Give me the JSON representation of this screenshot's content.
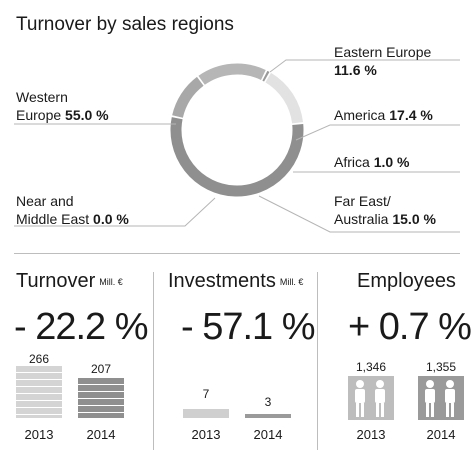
{
  "title": "Turnover by sales regions",
  "chart_data": [
    {
      "type": "pie",
      "title": "Turnover by sales regions",
      "slices": [
        {
          "label": "Eastern Europe",
          "value": 11.6,
          "value_text": "11.6 %"
        },
        {
          "label": "America",
          "value": 17.4,
          "value_text": "17.4 %"
        },
        {
          "label": "Africa",
          "value": 1.0,
          "value_text": "1.0 %"
        },
        {
          "label": "Far East/ Australia",
          "value": 15.0,
          "value_text": "15.0 %"
        },
        {
          "label": "Near and Middle East",
          "value": 0.0,
          "value_text": "0.0 %"
        },
        {
          "label": "Western Europe",
          "value": 55.0,
          "value_text": "55.0 %"
        }
      ],
      "colors": [
        "#a8a8a8",
        "#b6b6b6",
        "#9a9a9a",
        "#e2e2e2",
        "#c8c8c8",
        "#8f8f8f"
      ],
      "style": "donut"
    },
    {
      "type": "bar",
      "title": "Turnover",
      "unit": "Mill. €",
      "change": "- 22.2 %",
      "categories": [
        "2013",
        "2014"
      ],
      "values": [
        266,
        207
      ]
    },
    {
      "type": "bar",
      "title": "Investments",
      "unit": "Mill. €",
      "change": "- 57.1 %",
      "categories": [
        "2013",
        "2014"
      ],
      "values": [
        7,
        3
      ]
    },
    {
      "type": "bar",
      "title": "Employees",
      "unit": "",
      "change": "+ 0.7 %",
      "categories": [
        "2013",
        "2014"
      ],
      "values": [
        1346,
        1355
      ],
      "value_labels": [
        "1,346",
        "1,355"
      ]
    }
  ],
  "labels": {
    "eastern": {
      "name": "Eastern Europe",
      "value": "11.6 %"
    },
    "america": {
      "name": "America",
      "value": "17.4 %"
    },
    "africa": {
      "name": "Africa",
      "value": "1.0 %"
    },
    "fareast": {
      "line1": "Far East/",
      "line2": "Australia",
      "value": "15.0 %"
    },
    "western": {
      "line1": "Western",
      "line2": "Europe",
      "value": "55.0 %"
    },
    "nearmiddle": {
      "line1": "Near and",
      "line2": "Middle East",
      "value": "0.0 %"
    }
  },
  "kpis": {
    "turnover": {
      "title": "Turnover",
      "unit": "Mill. €",
      "change": "- 22.2 %",
      "v2013": "266",
      "v2014": "207",
      "y2013": "2013",
      "y2014": "2014"
    },
    "investments": {
      "title": "Investments",
      "unit": "Mill. €",
      "change": "- 57.1 %",
      "v2013": "7",
      "v2014": "3",
      "y2013": "2013",
      "y2014": "2014"
    },
    "employees": {
      "title": "Employees",
      "change": "+ 0.7 %",
      "v2013": "1,346",
      "v2014": "1,355",
      "y2013": "2013",
      "y2014": "2014"
    }
  }
}
